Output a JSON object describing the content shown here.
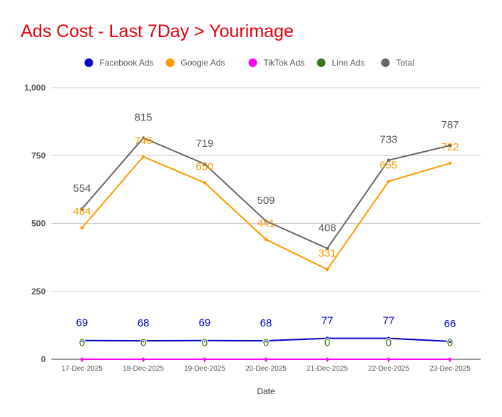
{
  "chart_data": {
    "type": "line",
    "title": "Ads Cost - Last 7Day > Yourimage",
    "xlabel": "Date",
    "ylabel": "",
    "ylim": [
      0,
      1000
    ],
    "yticks": [
      0,
      250,
      500,
      750,
      1000
    ],
    "ytick_labels": [
      "0",
      "250",
      "500",
      "750",
      "1,000"
    ],
    "grid": true,
    "legend_position": "top",
    "categories": [
      "17-Dec-2025",
      "18-Dec-2025",
      "19-Dec-2025",
      "20-Dec-2025",
      "21-Dec-2025",
      "22-Dec-2025",
      "23-Dec-2025"
    ],
    "series": [
      {
        "name": "Facebook Ads",
        "color": "#0000cc",
        "values": [
          69,
          68,
          69,
          68,
          77,
          77,
          66
        ]
      },
      {
        "name": "Google Ads",
        "color": "#ff9900",
        "values": [
          484,
          746,
          650,
          441,
          331,
          655,
          722
        ]
      },
      {
        "name": "TikTok Ads",
        "color": "#ff00ff",
        "values": [
          0,
          0,
          0,
          0,
          0,
          0,
          0
        ]
      },
      {
        "name": "Line Ads",
        "color": "#38761d",
        "values": [
          0,
          0,
          0,
          0,
          0,
          0,
          0
        ]
      },
      {
        "name": "Total",
        "color": "#666666",
        "values": [
          554,
          815,
          719,
          509,
          408,
          733,
          787
        ]
      }
    ]
  }
}
